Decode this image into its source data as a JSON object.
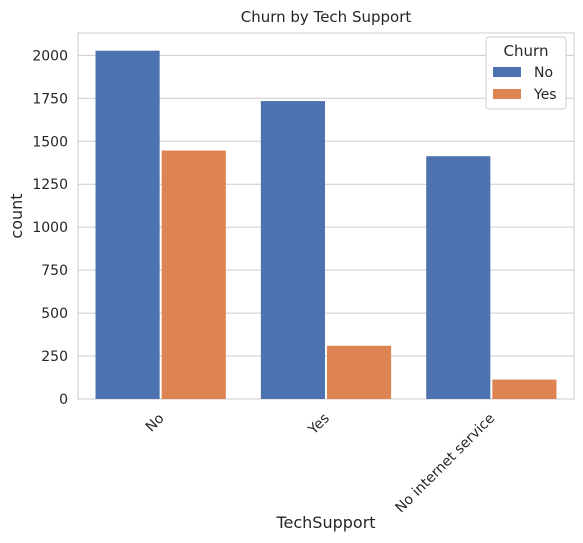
{
  "chart_data": {
    "type": "bar",
    "title": "Churn by Tech Support",
    "xlabel": "TechSupport",
    "ylabel": "count",
    "categories": [
      "No",
      "Yes",
      "No internet service"
    ],
    "series": [
      {
        "name": "No",
        "values": [
          2027,
          1734,
          1413
        ],
        "color": "#4c72b0"
      },
      {
        "name": "Yes",
        "values": [
          1446,
          310,
          113
        ],
        "color": "#dd8452"
      }
    ],
    "ylim": [
      0,
      2130
    ],
    "yticks": [
      0,
      250,
      500,
      750,
      1000,
      1250,
      1500,
      1750,
      2000
    ],
    "grid": true,
    "legend": {
      "title": "Churn",
      "placement": "top-right"
    }
  }
}
